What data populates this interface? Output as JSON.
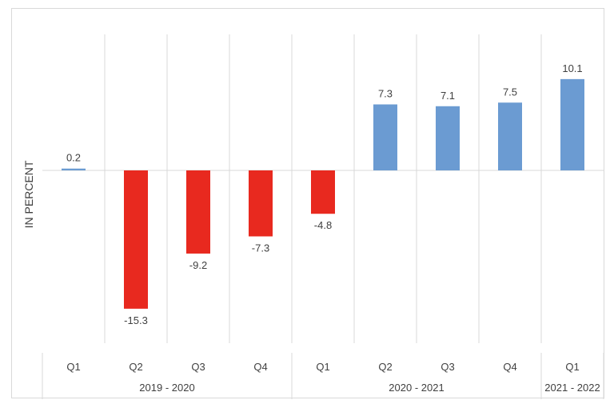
{
  "chart_data": {
    "type": "bar",
    "title": "",
    "xlabel": "",
    "ylabel": "IN PERCENT",
    "ylim": [
      -20,
      12
    ],
    "grid": "vertical category separators",
    "legend": "none",
    "categories": [
      "Q1",
      "Q2",
      "Q3",
      "Q4",
      "Q1",
      "Q2",
      "Q3",
      "Q4",
      "Q1"
    ],
    "groups": [
      {
        "label": "2019 - 2020",
        "span": [
          0,
          3
        ]
      },
      {
        "label": "2020 - 2021",
        "span": [
          4,
          7
        ]
      },
      {
        "label": "2021 - 2022",
        "span": [
          8,
          8
        ]
      }
    ],
    "values": [
      0.2,
      -15.3,
      -9.2,
      -7.3,
      -4.8,
      7.3,
      7.1,
      7.5,
      10.1
    ],
    "value_labels": [
      "0.2",
      "-15.3",
      "-9.2",
      "-7.3",
      "-4.8",
      "7.3",
      "7.1",
      "7.5",
      "10.1"
    ],
    "colors": {
      "positive": "#6b9bd2",
      "negative": "#e8291f",
      "gridline": "#d9d9d9",
      "text": "#404040"
    }
  }
}
